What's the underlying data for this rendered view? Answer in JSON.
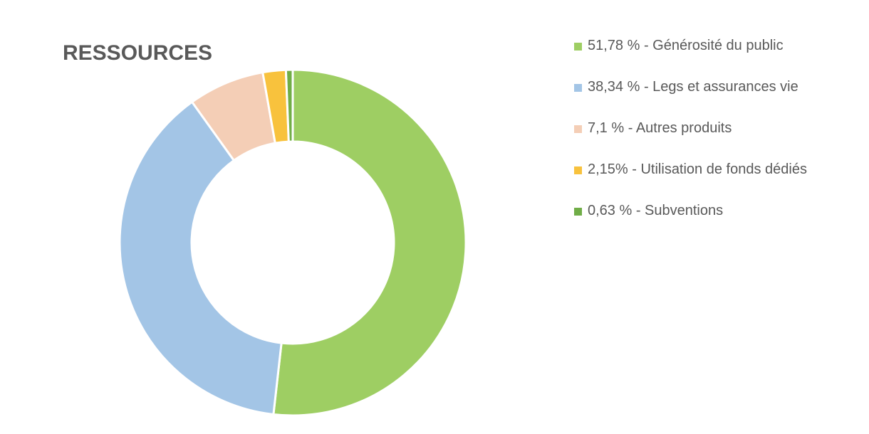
{
  "chart_data": {
    "type": "pie",
    "title": "RESSOURCES",
    "legend_position": "right",
    "series": [
      {
        "label": "51,78 % - Générosité du public",
        "value": 51.78,
        "color": "#9ece63"
      },
      {
        "label": "38,34 % - Legs et assurances vie",
        "value": 38.34,
        "color": "#a3c5e6"
      },
      {
        "label": "7,1 % - Autres produits",
        "value": 7.1,
        "color": "#f4ceb6"
      },
      {
        "label": "2,15% - Utilisation de fonds dédiés",
        "value": 2.15,
        "color": "#f8c23d"
      },
      {
        "label": "0,63 % - Subventions",
        "value": 0.63,
        "color": "#70ad47"
      }
    ]
  }
}
